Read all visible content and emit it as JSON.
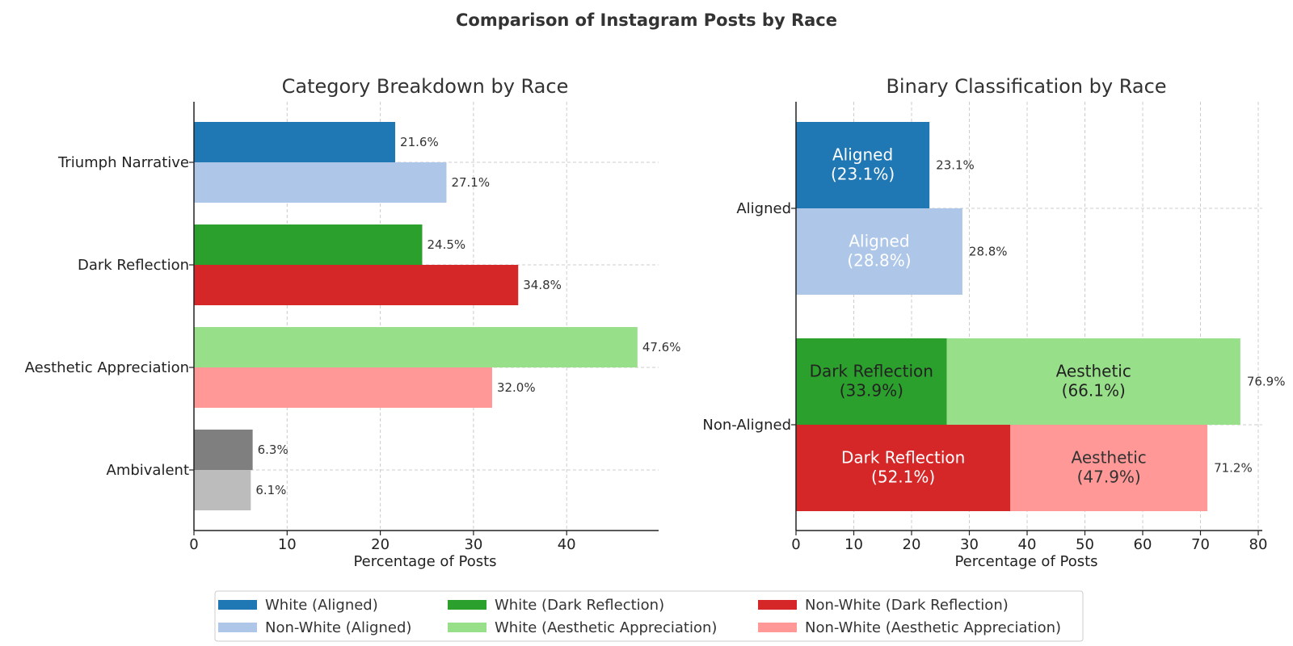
{
  "figure": {
    "title": "Comparison of Instagram Posts by Race"
  },
  "chart_data": [
    {
      "type": "bar",
      "orientation": "horizontal",
      "title": "Category Breakdown by Race",
      "xlabel": "Percentage of Posts",
      "ylabel": "",
      "xlim": [
        0,
        50
      ],
      "xticks": [
        0,
        10,
        20,
        30,
        40
      ],
      "grid": true,
      "categories": [
        "Triumph Narrative",
        "Dark Reflection",
        "Aesthetic Appreciation",
        "Ambivalent"
      ],
      "bars": [
        {
          "category": "Triumph Narrative",
          "group": "White",
          "value": 21.6,
          "label": "21.6%",
          "color": "#1f77b4"
        },
        {
          "category": "Triumph Narrative",
          "group": "Non-White",
          "value": 27.1,
          "label": "27.1%",
          "color": "#aec7e8"
        },
        {
          "category": "Dark Reflection",
          "group": "White",
          "value": 24.5,
          "label": "24.5%",
          "color": "#2ca02c"
        },
        {
          "category": "Dark Reflection",
          "group": "Non-White",
          "value": 34.8,
          "label": "34.8%",
          "color": "#d62728"
        },
        {
          "category": "Aesthetic Appreciation",
          "group": "White",
          "value": 47.6,
          "label": "47.6%",
          "color": "#98df8a"
        },
        {
          "category": "Aesthetic Appreciation",
          "group": "Non-White",
          "value": 32.0,
          "label": "32.0%",
          "color": "#ff9896"
        },
        {
          "category": "Ambivalent",
          "group": "White",
          "value": 6.3,
          "label": "6.3%",
          "color": "#7f7f7f"
        },
        {
          "category": "Ambivalent",
          "group": "Non-White",
          "value": 6.1,
          "label": "6.1%",
          "color": "#bcbcbc"
        }
      ]
    },
    {
      "type": "bar",
      "orientation": "horizontal",
      "stacked": true,
      "title": "Binary Classification by Race",
      "xlabel": "Percentage of Posts",
      "ylabel": "",
      "xlim": [
        0,
        81
      ],
      "xticks": [
        0,
        10,
        20,
        30,
        40,
        50,
        60,
        70,
        80
      ],
      "grid": true,
      "categories": [
        "Aligned",
        "Non-Aligned"
      ],
      "bars": [
        {
          "category": "Aligned",
          "group": "White",
          "total": 23.1,
          "total_label": "23.1%",
          "segments": [
            {
              "value": 23.1,
              "color": "#1f77b4",
              "label": "Aligned\n(23.1%)",
              "text_color": "#ffffff"
            }
          ]
        },
        {
          "category": "Aligned",
          "group": "Non-White",
          "total": 28.8,
          "total_label": "28.8%",
          "segments": [
            {
              "value": 28.8,
              "color": "#aec7e8",
              "label": "Aligned\n(28.8%)",
              "text_color": "#ffffff"
            }
          ]
        },
        {
          "category": "Non-Aligned",
          "group": "White",
          "total": 76.9,
          "total_label": "76.9%",
          "segments": [
            {
              "value": 26.1,
              "color": "#2ca02c",
              "label": "Dark Reflection\n(33.9%)",
              "text_color": "#222222"
            },
            {
              "value": 50.8,
              "color": "#98df8a",
              "label": "Aesthetic\n(66.1%)",
              "text_color": "#222222"
            }
          ]
        },
        {
          "category": "Non-Aligned",
          "group": "Non-White",
          "total": 71.2,
          "total_label": "71.2%",
          "segments": [
            {
              "value": 37.1,
              "color": "#d62728",
              "label": "Dark Reflection\n(52.1%)",
              "text_color": "#ffffff"
            },
            {
              "value": 34.1,
              "color": "#ff9896",
              "label": "Aesthetic\n(47.9%)",
              "text_color": "#333333"
            }
          ]
        }
      ]
    }
  ],
  "legend": {
    "placement": "bottom-center",
    "entries": [
      {
        "label": "White (Aligned)",
        "color": "#1f77b4"
      },
      {
        "label": "Non-White (Aligned)",
        "color": "#aec7e8"
      },
      {
        "label": "White (Dark Reflection)",
        "color": "#2ca02c"
      },
      {
        "label": "White (Aesthetic Appreciation)",
        "color": "#98df8a"
      },
      {
        "label": "Non-White (Dark Reflection)",
        "color": "#d62728"
      },
      {
        "label": "Non-White (Aesthetic Appreciation)",
        "color": "#ff9896"
      }
    ]
  }
}
